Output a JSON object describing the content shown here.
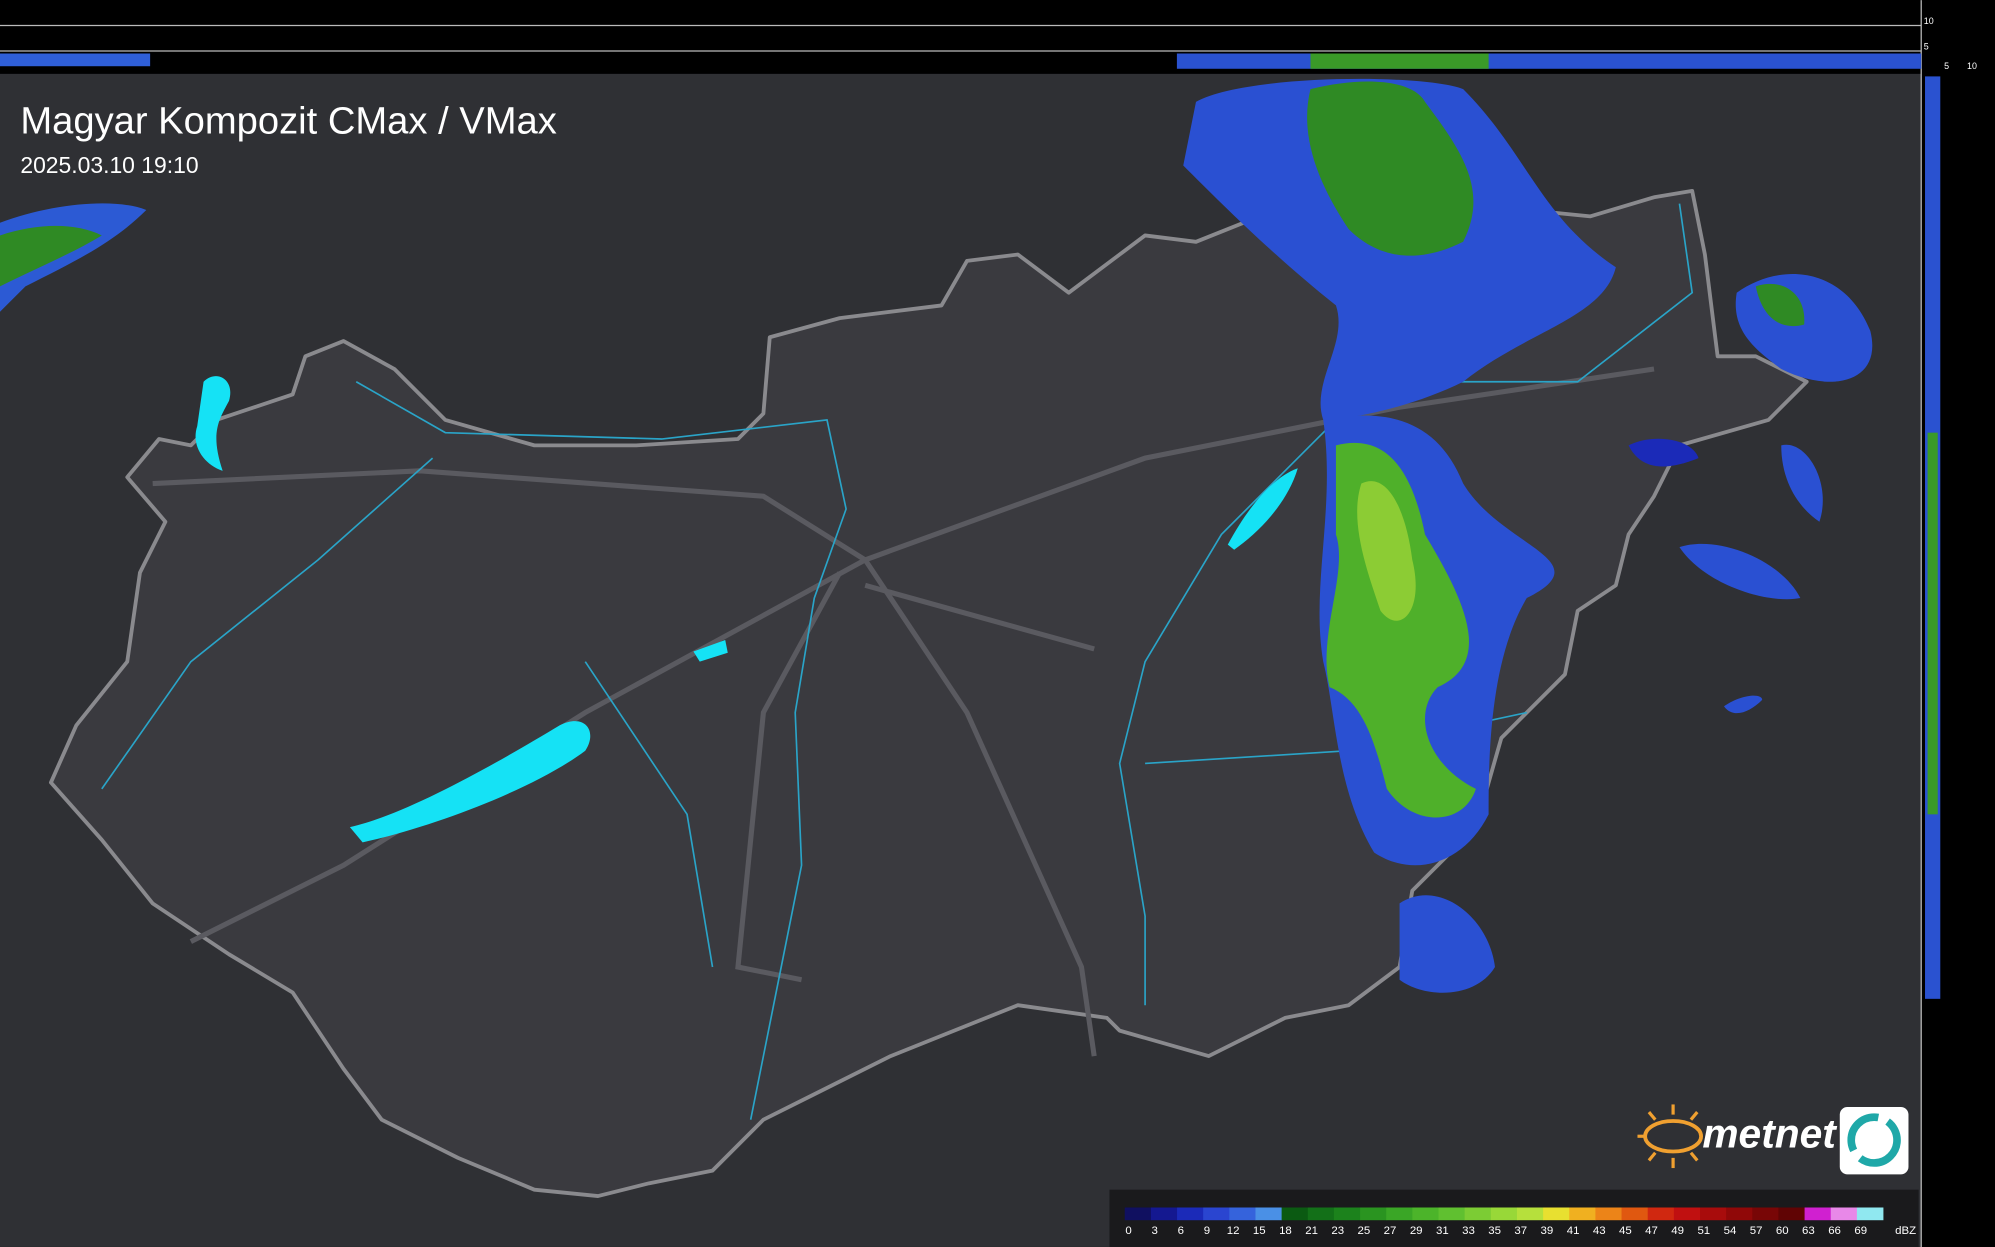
{
  "header": {
    "title": "Magyar Kompozit CMax / VMax",
    "timestamp": "2025.03.10 19:10"
  },
  "side_scale": {
    "top": [
      "10",
      "5"
    ],
    "right": [
      "5",
      "10"
    ]
  },
  "logo": {
    "text": "metnet"
  },
  "legend": {
    "unit": "dBZ",
    "stops": [
      {
        "value": 0,
        "color": "#101060"
      },
      {
        "value": 3,
        "color": "#141890"
      },
      {
        "value": 6,
        "color": "#1b2ab8"
      },
      {
        "value": 9,
        "color": "#2a45d0"
      },
      {
        "value": 12,
        "color": "#3563dc"
      },
      {
        "value": 15,
        "color": "#4a90e6"
      },
      {
        "value": 18,
        "color": "#0b5a12"
      },
      {
        "value": 21,
        "color": "#137018"
      },
      {
        "value": 23,
        "color": "#1c821c"
      },
      {
        "value": 25,
        "color": "#2a9420"
      },
      {
        "value": 27,
        "color": "#3aa626"
      },
      {
        "value": 29,
        "color": "#4cb42a"
      },
      {
        "value": 31,
        "color": "#60c030"
      },
      {
        "value": 33,
        "color": "#7ccc34"
      },
      {
        "value": 35,
        "color": "#98d838"
      },
      {
        "value": 37,
        "color": "#b6e03c"
      },
      {
        "value": 39,
        "color": "#e8e030"
      },
      {
        "value": 41,
        "color": "#f0b020"
      },
      {
        "value": 43,
        "color": "#ec8418"
      },
      {
        "value": 45,
        "color": "#e05810"
      },
      {
        "value": 47,
        "color": "#d02810"
      },
      {
        "value": 49,
        "color": "#c01010"
      },
      {
        "value": 51,
        "color": "#a80c0c"
      },
      {
        "value": 54,
        "color": "#900808"
      },
      {
        "value": 57,
        "color": "#780606"
      },
      {
        "value": 60,
        "color": "#600404"
      },
      {
        "value": 63,
        "color": "#d020d0"
      },
      {
        "value": 66,
        "color": "#e888e8"
      },
      {
        "value": 69,
        "color": "#90e8f0"
      }
    ]
  }
}
